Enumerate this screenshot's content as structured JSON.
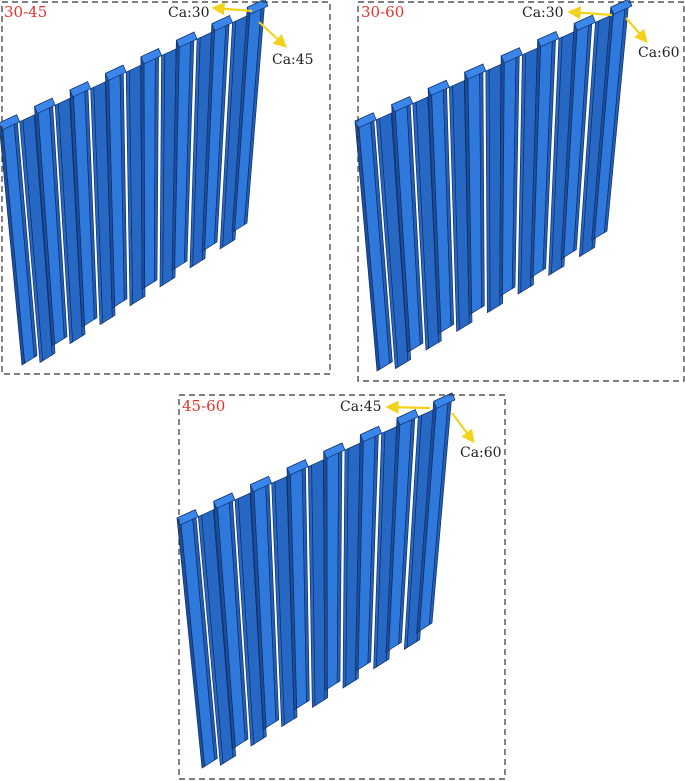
{
  "panels": [
    {
      "label": "30-45",
      "annotations": [
        "Ca:30",
        "Ca:45"
      ]
    },
    {
      "label": "30-60",
      "annotations": [
        "Ca:30",
        "Ca:60"
      ]
    },
    {
      "label": "45-60",
      "annotations": [
        "Ca:45",
        "Ca:60"
      ]
    }
  ]
}
